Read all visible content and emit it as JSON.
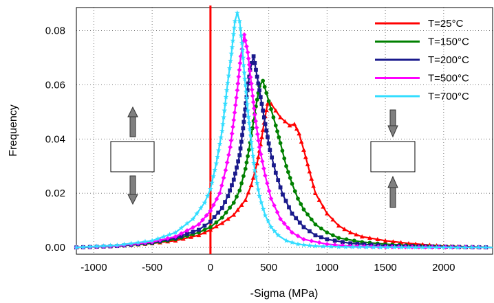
{
  "chart_data": {
    "type": "line",
    "xlabel": "-Sigma (MPa)",
    "ylabel": "Frequency",
    "xlim": [
      -1150,
      2420
    ],
    "ylim": [
      -0.0025,
      0.0885
    ],
    "x_ticks": [
      -1000,
      -500,
      0,
      500,
      1000,
      1500,
      2000
    ],
    "x_tick_labels": [
      "-1000",
      "-500",
      "0",
      "500",
      "1000",
      "1500",
      "2000"
    ],
    "y_ticks": [
      0.0,
      0.02,
      0.04,
      0.06,
      0.08
    ],
    "y_tick_labels": [
      "0.00",
      "0.02",
      "0.04",
      "0.06",
      "0.08"
    ],
    "grid": true,
    "legend_position": "top-right",
    "zero_line_color": "#ff0000",
    "series": [
      {
        "name": "T=25°C",
        "color": "#ff0000",
        "marker": "triangle",
        "x": [
          -1150,
          -800,
          -500,
          -300,
          -100,
          0,
          100,
          200,
          300,
          350,
          400,
          430,
          460,
          490,
          520,
          560,
          600,
          640,
          680,
          720,
          760,
          800,
          850,
          900,
          1000,
          1100,
          1200,
          1300,
          1500,
          1700,
          2000,
          2420
        ],
        "y": [
          0.0,
          0.0005,
          0.0015,
          0.0025,
          0.0045,
          0.0065,
          0.009,
          0.012,
          0.0175,
          0.023,
          0.031,
          0.038,
          0.046,
          0.053,
          0.053,
          0.0505,
          0.048,
          0.0465,
          0.045,
          0.0455,
          0.042,
          0.036,
          0.028,
          0.02,
          0.0125,
          0.008,
          0.0055,
          0.004,
          0.0025,
          0.0015,
          0.0005,
          0.0
        ]
      },
      {
        "name": "T=150°C",
        "color": "#008000",
        "marker": "circle",
        "x": [
          -1150,
          -800,
          -500,
          -300,
          -100,
          0,
          100,
          200,
          250,
          300,
          330,
          360,
          390,
          420,
          450,
          480,
          520,
          560,
          600,
          650,
          700,
          750,
          800,
          900,
          1000,
          1100,
          1300,
          1500,
          1800,
          2420
        ],
        "y": [
          0.0,
          0.0005,
          0.0015,
          0.003,
          0.0055,
          0.0075,
          0.011,
          0.0165,
          0.021,
          0.029,
          0.036,
          0.044,
          0.052,
          0.0595,
          0.0615,
          0.057,
          0.051,
          0.045,
          0.0385,
          0.03,
          0.0235,
          0.018,
          0.014,
          0.0085,
          0.0055,
          0.0035,
          0.002,
          0.0012,
          0.0005,
          0.0
        ]
      },
      {
        "name": "T=200°C",
        "color": "#1a1a8c",
        "marker": "square",
        "x": [
          -1150,
          -800,
          -500,
          -300,
          -100,
          0,
          100,
          150,
          200,
          250,
          280,
          310,
          340,
          370,
          400,
          430,
          470,
          510,
          560,
          620,
          700,
          800,
          900,
          1000,
          1200,
          1500,
          2420
        ],
        "y": [
          0.0,
          0.0005,
          0.0018,
          0.0035,
          0.0065,
          0.0095,
          0.0145,
          0.019,
          0.025,
          0.034,
          0.044,
          0.0555,
          0.0655,
          0.0705,
          0.063,
          0.0555,
          0.0455,
          0.036,
          0.0275,
          0.0195,
          0.0125,
          0.0075,
          0.0045,
          0.003,
          0.0015,
          0.0006,
          0.0
        ]
      },
      {
        "name": "T=500°C",
        "color": "#ff00ff",
        "marker": "diamond",
        "x": [
          -1150,
          -800,
          -500,
          -300,
          -100,
          0,
          80,
          130,
          170,
          200,
          230,
          260,
          290,
          320,
          350,
          380,
          420,
          470,
          520,
          600,
          700,
          800,
          1000,
          1200,
          1500,
          2420
        ],
        "y": [
          0.0,
          0.0006,
          0.002,
          0.004,
          0.0085,
          0.0135,
          0.02,
          0.0285,
          0.037,
          0.047,
          0.058,
          0.0705,
          0.0785,
          0.072,
          0.0605,
          0.049,
          0.037,
          0.0265,
          0.018,
          0.0105,
          0.0055,
          0.003,
          0.0012,
          0.0005,
          0.0002,
          0.0
        ]
      },
      {
        "name": "T=700°C",
        "color": "#33ddff",
        "marker": "star",
        "x": [
          -1150,
          -800,
          -500,
          -300,
          -150,
          -50,
          0,
          50,
          100,
          140,
          180,
          210,
          230,
          250,
          270,
          290,
          320,
          350,
          380,
          420,
          470,
          520,
          580,
          650,
          750,
          900,
          1100,
          1400,
          2420
        ],
        "y": [
          0.0,
          0.0008,
          0.0025,
          0.0055,
          0.0105,
          0.0165,
          0.0215,
          0.031,
          0.043,
          0.058,
          0.0715,
          0.0835,
          0.0865,
          0.0835,
          0.0755,
          0.0645,
          0.0505,
          0.039,
          0.0285,
          0.019,
          0.0118,
          0.0075,
          0.0045,
          0.0025,
          0.0012,
          0.0005,
          0.0002,
          0.0001,
          0.0
        ]
      }
    ]
  },
  "insets": {
    "left": "tension-specimen-icon",
    "right": "compression-specimen-icon"
  }
}
